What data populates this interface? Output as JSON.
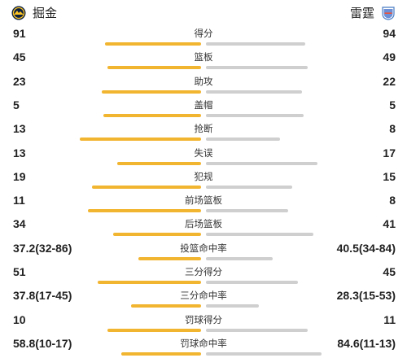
{
  "header": {
    "home_team": "掘金",
    "away_team": "雷霆",
    "home_logo_icon": "nuggets-logo-icon",
    "away_logo_icon": "thunder-logo-icon"
  },
  "colors": {
    "home_bar": "#f2b530",
    "away_bar": "#cfcfcf"
  },
  "stats": [
    {
      "label": "得分",
      "home": "91",
      "away": "94",
      "home_share": 0.49,
      "away_share": 0.51
    },
    {
      "label": "篮板",
      "home": "45",
      "away": "49",
      "home_share": 0.48,
      "away_share": 0.52
    },
    {
      "label": "助攻",
      "home": "23",
      "away": "22",
      "home_share": 0.51,
      "away_share": 0.49
    },
    {
      "label": "盖帽",
      "home": "5",
      "away": "5",
      "home_share": 0.5,
      "away_share": 0.5
    },
    {
      "label": "抢断",
      "home": "13",
      "away": "8",
      "home_share": 0.62,
      "away_share": 0.38
    },
    {
      "label": "失误",
      "home": "13",
      "away": "17",
      "home_share": 0.43,
      "away_share": 0.57
    },
    {
      "label": "犯规",
      "home": "19",
      "away": "15",
      "home_share": 0.56,
      "away_share": 0.44
    },
    {
      "label": "前场篮板",
      "home": "11",
      "away": "8",
      "home_share": 0.58,
      "away_share": 0.42
    },
    {
      "label": "后场篮板",
      "home": "34",
      "away": "41",
      "home_share": 0.45,
      "away_share": 0.55
    },
    {
      "label": "投篮命中率",
      "home": "37.2(32-86)",
      "away": "40.5(34-84)",
      "home_share": 0.32,
      "away_share": 0.34
    },
    {
      "label": "三分得分",
      "home": "51",
      "away": "45",
      "home_share": 0.53,
      "away_share": 0.47
    },
    {
      "label": "三分命中率",
      "home": "37.8(17-45)",
      "away": "28.3(15-53)",
      "home_share": 0.36,
      "away_share": 0.27
    },
    {
      "label": "罚球得分",
      "home": "10",
      "away": "11",
      "home_share": 0.48,
      "away_share": 0.52
    },
    {
      "label": "罚球命中率",
      "home": "58.8(10-17)",
      "away": "84.6(11-13)",
      "home_share": 0.41,
      "away_share": 0.59
    }
  ]
}
